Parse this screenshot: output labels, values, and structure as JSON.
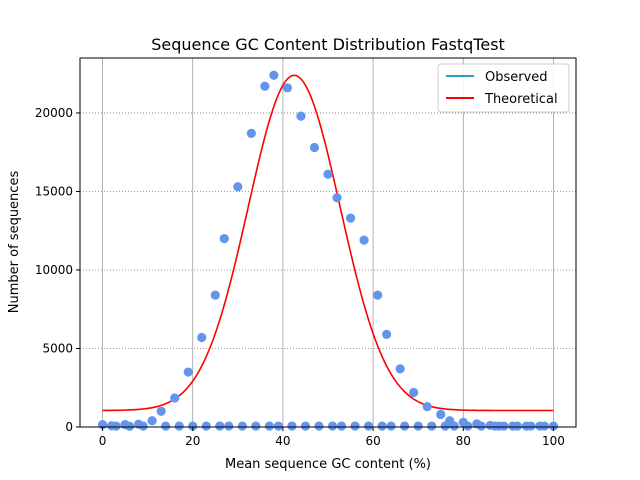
{
  "chart_data": {
    "type": "scatter",
    "title": "Sequence GC Content Distribution FastqTest",
    "xlabel": "Mean sequence GC content (%)",
    "ylabel": "Number of sequences",
    "xlim": [
      -5,
      105
    ],
    "ylim": [
      0,
      23500
    ],
    "xticks": [
      0,
      20,
      40,
      60,
      80,
      100
    ],
    "xtick_labels": [
      "0",
      "20",
      "40",
      "60",
      "80",
      "100"
    ],
    "yticks": [
      0,
      5000,
      10000,
      15000,
      20000
    ],
    "ytick_labels": [
      "0",
      "5000",
      "10000",
      "15000",
      "20000"
    ],
    "grid": {
      "x": "solid",
      "y": "dotted"
    },
    "legend": {
      "position": "top-right",
      "entries": [
        "Observed",
        "Theoretical"
      ]
    },
    "colors": {
      "observed": "#1f9ec9",
      "theoretical": "#ff0000",
      "points": "#6495ed",
      "grid": "#a0a0a0"
    },
    "series": [
      {
        "name": "Observed",
        "style": "points",
        "x": [
          0,
          2,
          3,
          5,
          6,
          8,
          9,
          11,
          13,
          14,
          16,
          17,
          19,
          20,
          22,
          23,
          25,
          26,
          27,
          28,
          30,
          31,
          33,
          34,
          36,
          37,
          38,
          39,
          41,
          42,
          44,
          45,
          47,
          48,
          50,
          51,
          52,
          53,
          55,
          56,
          58,
          59,
          61,
          62,
          63,
          64,
          66,
          67,
          69,
          70,
          72,
          73,
          75,
          76,
          77,
          78,
          80,
          81,
          83,
          84,
          86,
          87,
          88,
          89,
          91,
          92,
          94,
          95,
          97,
          98,
          100
        ],
        "y": [
          150,
          80,
          60,
          150,
          50,
          180,
          60,
          400,
          1000,
          60,
          1850,
          60,
          3500,
          60,
          5700,
          60,
          8400,
          60,
          12000,
          60,
          15300,
          60,
          18700,
          60,
          21700,
          60,
          22400,
          60,
          21600,
          60,
          19800,
          60,
          17800,
          60,
          16100,
          60,
          14600,
          60,
          13300,
          60,
          11900,
          60,
          8400,
          60,
          5900,
          60,
          3700,
          60,
          2200,
          60,
          1300,
          60,
          800,
          60,
          400,
          60,
          300,
          60,
          200,
          60,
          100,
          60,
          60,
          60,
          60,
          60,
          60,
          60,
          60,
          60,
          60
        ]
      },
      {
        "name": "Theoretical",
        "style": "line",
        "model": {
          "type": "gaussian",
          "mean": 42.5,
          "sd": 10.2,
          "peak": 21350,
          "offset": 1050
        }
      }
    ]
  }
}
